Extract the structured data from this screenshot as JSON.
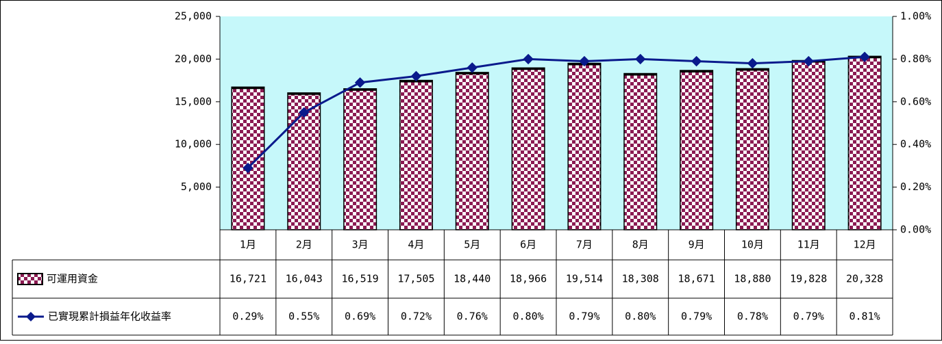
{
  "chart_data": {
    "type": "bar",
    "categories": [
      "1月",
      "2月",
      "3月",
      "4月",
      "5月",
      "6月",
      "7月",
      "8月",
      "9月",
      "10月",
      "11月",
      "12月"
    ],
    "series": [
      {
        "name": "可運用資金",
        "kind": "bar",
        "axis": "left",
        "values": [
          16721,
          16043,
          16519,
          17505,
          18440,
          18966,
          19514,
          18308,
          18671,
          18880,
          19828,
          20328
        ],
        "labels": [
          "16,721",
          "16,043",
          "16,519",
          "17,505",
          "18,440",
          "18,966",
          "19,514",
          "18,308",
          "18,671",
          "18,880",
          "19,828",
          "20,328"
        ],
        "color": "#8B1A52"
      },
      {
        "name": "已實現累計損益年化收益率",
        "kind": "line",
        "axis": "right",
        "values": [
          0.29,
          0.55,
          0.69,
          0.72,
          0.76,
          0.8,
          0.79,
          0.8,
          0.79,
          0.78,
          0.79,
          0.81
        ],
        "labels": [
          "0.29%",
          "0.55%",
          "0.69%",
          "0.72%",
          "0.76%",
          "0.80%",
          "0.79%",
          "0.80%",
          "0.79%",
          "0.78%",
          "0.79%",
          "0.81%"
        ],
        "color": "#0A1A8C"
      }
    ],
    "left_axis": {
      "ylim": [
        0,
        25000
      ],
      "ticks": [
        5000,
        10000,
        15000,
        20000,
        25000
      ],
      "tick_labels": [
        "5,000",
        "10,000",
        "15,000",
        "20,000",
        "25,000"
      ]
    },
    "right_axis": {
      "ylim": [
        0,
        1.0
      ],
      "ticks": [
        0,
        0.2,
        0.4,
        0.6,
        0.8,
        1.0
      ],
      "tick_labels": [
        "0.00%",
        "0.20%",
        "0.40%",
        "0.60%",
        "0.80%",
        "1.00%"
      ]
    },
    "plot_background": "#C6F8FA",
    "data_table": true,
    "grid": false,
    "legend": "data-table-left"
  }
}
